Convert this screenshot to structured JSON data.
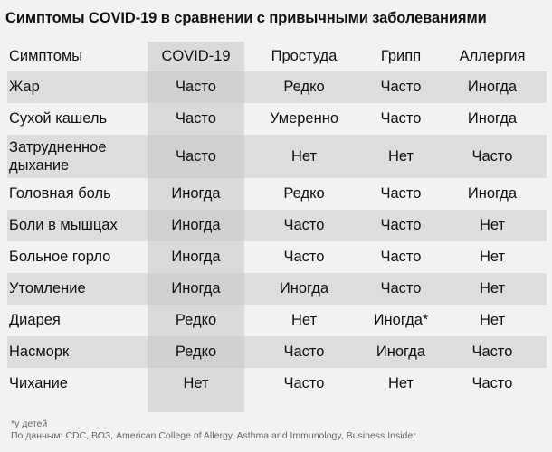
{
  "title": "Симптомы COVID-19 в сравнении с привычными заболеваниями",
  "table": {
    "headers": [
      "Симптомы",
      "COVID-19",
      "Простуда",
      "Грипп",
      "Аллергия"
    ],
    "rows": [
      [
        "Жар",
        "Часто",
        "Редко",
        "Часто",
        "Иногда"
      ],
      [
        "Сухой кашель",
        "Часто",
        "Умеренно",
        "Часто",
        "Иногда"
      ],
      [
        "Затрудненное дыхание",
        "Часто",
        "Нет",
        "Нет",
        "Часто"
      ],
      [
        "Головная боль",
        "Иногда",
        "Редко",
        "Часто",
        "Иногда"
      ],
      [
        "Боли в мышцах",
        "Иногда",
        "Часто",
        "Часто",
        "Нет"
      ],
      [
        "Больное горло",
        "Иногда",
        "Часто",
        "Часто",
        "Нет"
      ],
      [
        "Утомление",
        "Иногда",
        "Иногда",
        "Часто",
        "Нет"
      ],
      [
        "Диарея",
        "Редко",
        "Нет",
        "Иногда*",
        "Нет"
      ],
      [
        "Насморк",
        "Редко",
        "Часто",
        "Иногда",
        "Часто"
      ],
      [
        "Чихание",
        "Нет",
        "Часто",
        "Нет",
        "Часто"
      ]
    ]
  },
  "footnote": {
    "note": "*у детей",
    "source": "По данным: CDC, ВОЗ, American College of Allergy, Asthma and Immunology, Business Insider"
  }
}
